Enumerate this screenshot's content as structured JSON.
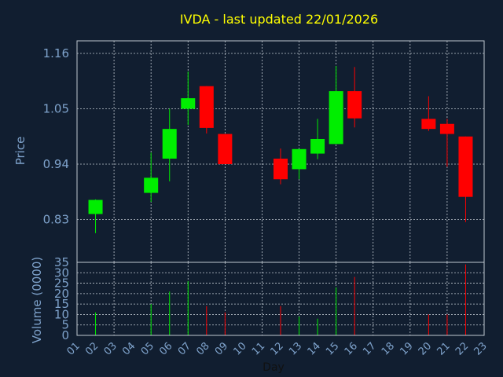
{
  "chart_data": {
    "type": "candlestick",
    "title": "IVDA - last updated 22/01/2026",
    "xlabel": "Day",
    "ylabel_price": "Price",
    "ylabel_volume": "Volume (0000)",
    "price_ylim": [
      0.745,
      1.185
    ],
    "price_ticks": [
      "0.83",
      "0.94",
      "1.05",
      "1.16"
    ],
    "volume_ylim": [
      0,
      35
    ],
    "volume_ticks": [
      "0",
      "5",
      "10",
      "15",
      "20",
      "25",
      "30",
      "35"
    ],
    "x_ticks": [
      "01",
      "02",
      "03",
      "04",
      "05",
      "06",
      "07",
      "08",
      "09",
      "10",
      "11",
      "12",
      "13",
      "14",
      "15",
      "16",
      "17",
      "18",
      "19",
      "20",
      "21",
      "22",
      "23"
    ],
    "grid": true,
    "colors": {
      "background": "#111e30",
      "title": "#ffff00",
      "axis_text": "#7fa3cc",
      "up": "#00ee00",
      "down": "#ff0000",
      "grid": "#c0c8d0"
    },
    "candles": [
      {
        "day": 2,
        "open": 0.841,
        "high": 0.87,
        "low": 0.803,
        "close": 0.869,
        "volume": 11
      },
      {
        "day": 5,
        "open": 0.883,
        "high": 0.963,
        "low": 0.865,
        "close": 0.913,
        "volume": 15
      },
      {
        "day": 6,
        "open": 0.951,
        "high": 1.05,
        "low": 0.906,
        "close": 1.01,
        "volume": 21
      },
      {
        "day": 7,
        "open": 1.05,
        "high": 1.124,
        "low": 1.018,
        "close": 1.071,
        "volume": 26
      },
      {
        "day": 8,
        "open": 1.095,
        "high": 1.095,
        "low": 1.001,
        "close": 1.012,
        "volume": 14
      },
      {
        "day": 9,
        "open": 1.0,
        "high": 1.0,
        "low": 0.94,
        "close": 0.94,
        "volume": 11
      },
      {
        "day": 12,
        "open": 0.951,
        "high": 0.971,
        "low": 0.9,
        "close": 0.91,
        "volume": 14
      },
      {
        "day": 13,
        "open": 0.93,
        "high": 0.97,
        "low": 0.91,
        "close": 0.97,
        "volume": 9
      },
      {
        "day": 14,
        "open": 0.961,
        "high": 1.03,
        "low": 0.95,
        "close": 0.99,
        "volume": 8
      },
      {
        "day": 15,
        "open": 0.98,
        "high": 1.135,
        "low": 0.98,
        "close": 1.085,
        "volume": 23
      },
      {
        "day": 16,
        "open": 1.085,
        "high": 1.133,
        "low": 1.013,
        "close": 1.031,
        "volume": 28
      },
      {
        "day": 20,
        "open": 1.03,
        "high": 1.075,
        "low": 1.006,
        "close": 1.01,
        "volume": 10
      },
      {
        "day": 21,
        "open": 1.02,
        "high": 1.03,
        "low": 0.935,
        "close": 1.0,
        "volume": 10
      },
      {
        "day": 22,
        "open": 0.995,
        "high": 0.995,
        "low": 0.825,
        "close": 0.875,
        "volume": 34
      }
    ]
  }
}
